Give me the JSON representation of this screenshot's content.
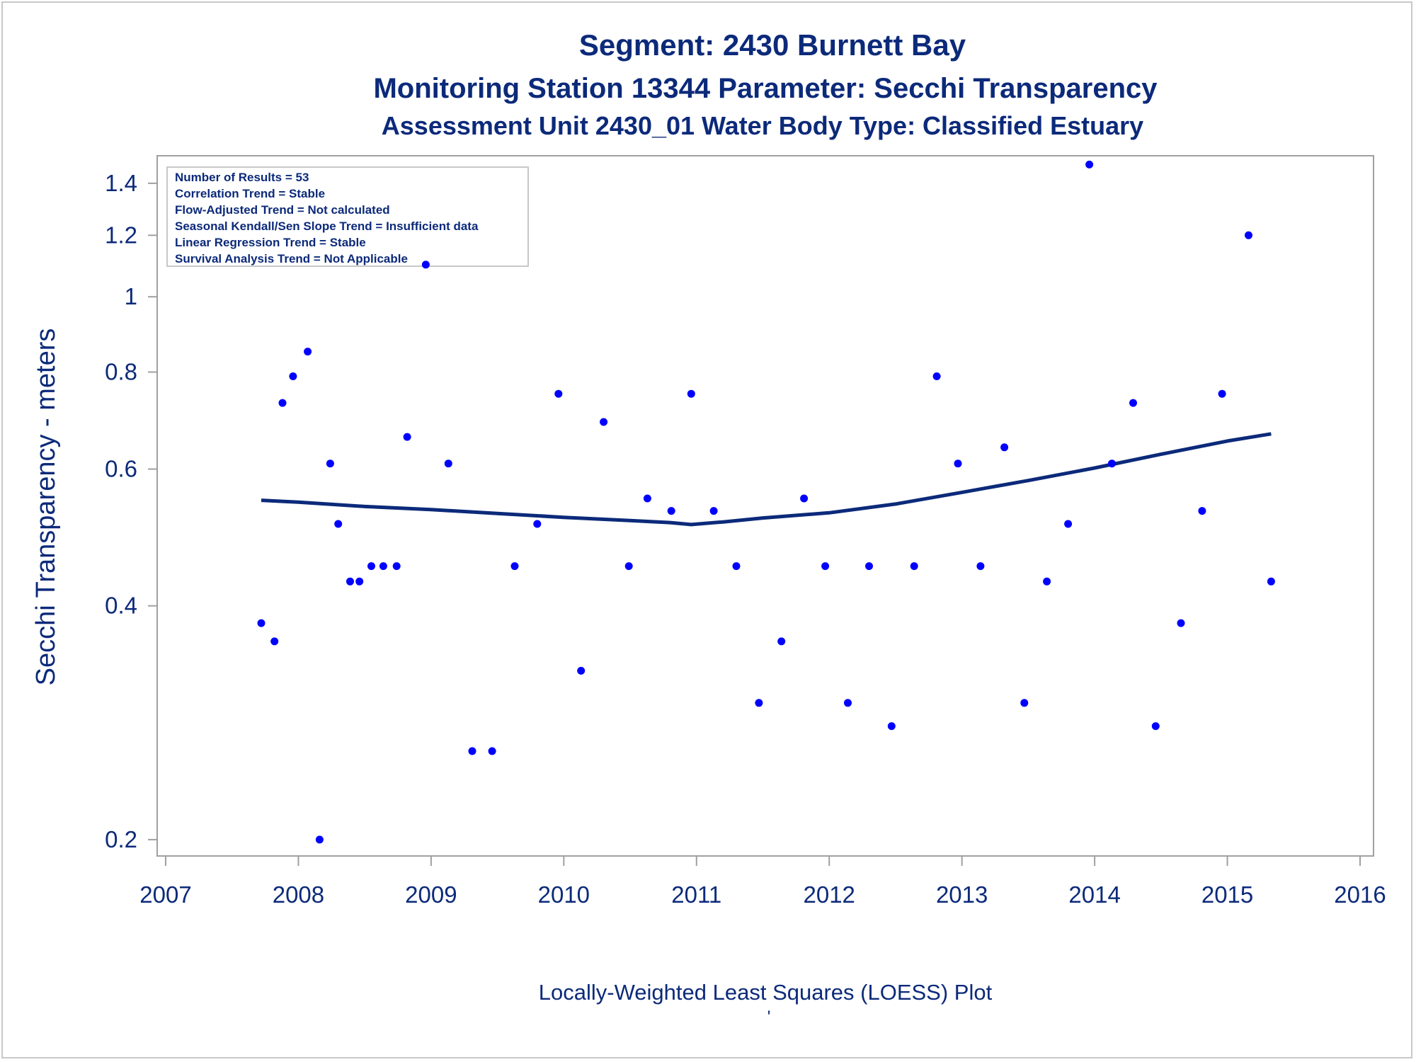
{
  "chart_data": {
    "type": "scatter",
    "title": "Segment: 2430  Burnett Bay",
    "subtitle": "Monitoring Station 13344 Parameter: Secchi Transparency",
    "subtitle2": "Assessment Unit 2430_01   Water Body Type: Classified Estuary",
    "xlabel": "Locally-Weighted Least Squares (LOESS) Plot",
    "ylabel": "Secchi Transparency - meters",
    "footnote": "'",
    "y_scale": "log",
    "xlim": [
      2007,
      2016
    ],
    "ylim": [
      0.195,
      1.5
    ],
    "x_ticks": [
      2007,
      2008,
      2009,
      2010,
      2011,
      2012,
      2013,
      2014,
      2015,
      2016
    ],
    "y_ticks": [
      0.2,
      0.4,
      0.6,
      0.8,
      1,
      1.2,
      1.4
    ],
    "y_tick_labels": [
      "0.2",
      "0.4",
      "0.6",
      "0.8",
      "1",
      "1.2",
      "1.4"
    ],
    "grid": false,
    "stats_box": {
      "position": "top-left",
      "lines": [
        "Number of Results = 53",
        "Correlation Trend = Stable",
        "Flow-Adjusted Trend = Not calculated",
        "Seasonal Kendall/Sen Slope Trend = Insufficient data",
        "Linear Regression Trend = Stable",
        "Survival Analysis Trend = Not Applicable"
      ]
    },
    "colors": {
      "points": "#0000ff",
      "loess": "#0c2a7a",
      "text": "#0c2a7a",
      "axis": "#a0a0a0"
    },
    "series": [
      {
        "type": "scatter",
        "points": [
          [
            2007.72,
            0.38
          ],
          [
            2007.82,
            0.36
          ],
          [
            2007.88,
            0.73
          ],
          [
            2007.96,
            0.79
          ],
          [
            2008.07,
            0.85
          ],
          [
            2008.16,
            0.2
          ],
          [
            2008.24,
            0.61
          ],
          [
            2008.3,
            0.51
          ],
          [
            2008.39,
            0.43
          ],
          [
            2008.46,
            0.43
          ],
          [
            2008.55,
            0.45
          ],
          [
            2008.64,
            0.45
          ],
          [
            2008.74,
            0.45
          ],
          [
            2008.82,
            0.66
          ],
          [
            2008.96,
            1.1
          ],
          [
            2009.13,
            0.61
          ],
          [
            2009.31,
            0.26
          ],
          [
            2009.46,
            0.26
          ],
          [
            2009.63,
            0.45
          ],
          [
            2009.8,
            0.51
          ],
          [
            2009.96,
            0.75
          ],
          [
            2010.13,
            0.33
          ],
          [
            2010.3,
            0.69
          ],
          [
            2010.49,
            0.45
          ],
          [
            2010.63,
            0.55
          ],
          [
            2010.81,
            0.53
          ],
          [
            2010.96,
            0.75
          ],
          [
            2011.13,
            0.53
          ],
          [
            2011.3,
            0.45
          ],
          [
            2011.47,
            0.3
          ],
          [
            2011.64,
            0.36
          ],
          [
            2011.81,
            0.55
          ],
          [
            2011.97,
            0.45
          ],
          [
            2012.14,
            0.3
          ],
          [
            2012.3,
            0.45
          ],
          [
            2012.47,
            0.28
          ],
          [
            2012.64,
            0.45
          ],
          [
            2012.81,
            0.79
          ],
          [
            2012.97,
            0.61
          ],
          [
            2013.14,
            0.45
          ],
          [
            2013.32,
            0.64
          ],
          [
            2013.47,
            0.3
          ],
          [
            2013.64,
            0.43
          ],
          [
            2013.8,
            0.51
          ],
          [
            2013.96,
            1.48
          ],
          [
            2014.13,
            0.61
          ],
          [
            2014.29,
            0.73
          ],
          [
            2014.46,
            0.28
          ],
          [
            2014.65,
            0.38
          ],
          [
            2014.81,
            0.53
          ],
          [
            2014.96,
            0.75
          ],
          [
            2015.16,
            1.2
          ],
          [
            2015.33,
            0.43
          ]
        ]
      },
      {
        "type": "line",
        "name": "LOESS",
        "points": [
          [
            2007.72,
            0.547
          ],
          [
            2008.0,
            0.544
          ],
          [
            2008.5,
            0.537
          ],
          [
            2009.0,
            0.532
          ],
          [
            2009.5,
            0.526
          ],
          [
            2010.0,
            0.52
          ],
          [
            2010.5,
            0.515
          ],
          [
            2010.8,
            0.512
          ],
          [
            2010.96,
            0.509
          ],
          [
            2011.2,
            0.513
          ],
          [
            2011.5,
            0.519
          ],
          [
            2012.0,
            0.527
          ],
          [
            2012.5,
            0.541
          ],
          [
            2013.0,
            0.56
          ],
          [
            2013.5,
            0.58
          ],
          [
            2014.0,
            0.602
          ],
          [
            2014.5,
            0.627
          ],
          [
            2015.0,
            0.652
          ],
          [
            2015.33,
            0.666
          ]
        ]
      }
    ]
  }
}
